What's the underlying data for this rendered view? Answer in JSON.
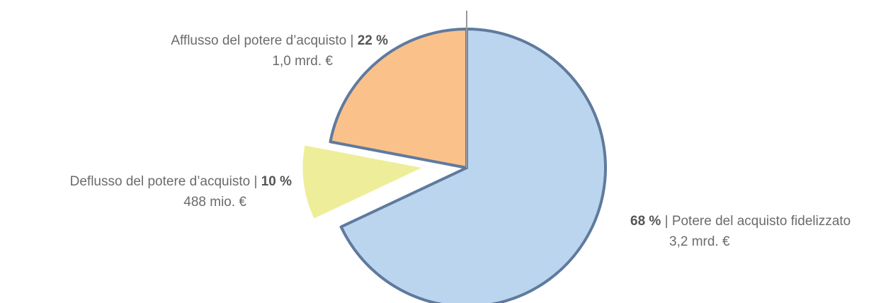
{
  "chart_data": {
    "type": "pie",
    "categories": [
      "Potere del acquisto fidelizzato",
      "Deflusso del potere d’acquisto",
      "Afflusso del potere d’acquisto"
    ],
    "values": [
      68,
      10,
      22
    ],
    "value_labels": [
      "68 %",
      "10 %",
      "22 %"
    ],
    "amounts": [
      "3,2 mrd. €",
      "488 mio. €",
      "1,0 mrd. €"
    ],
    "separator": "|",
    "colors": [
      "#bcd5ee",
      "#eeee9a",
      "#fbc18a"
    ],
    "exploded": [
      false,
      true,
      false
    ],
    "start_angle": 0
  }
}
